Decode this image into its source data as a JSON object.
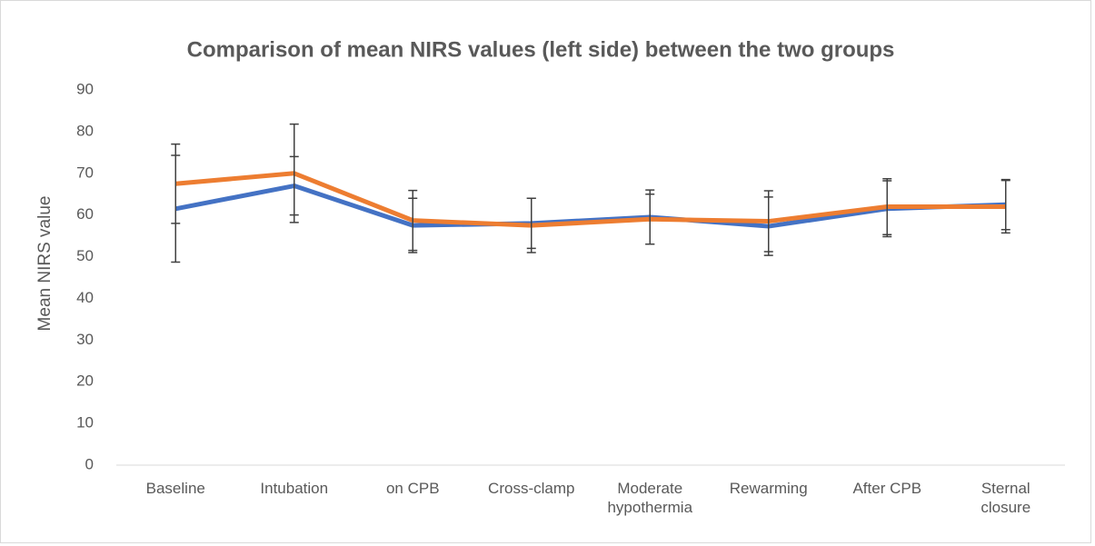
{
  "chart_data": {
    "type": "line",
    "title": "Comparison of mean NIRS values (left side) between the two groups",
    "y_label": "Mean NIRS value",
    "categories": [
      "Baseline",
      "Intubation",
      "on CPB",
      "Cross-clamp",
      "Moderate hypothermia",
      "Rewarming",
      "After CPB",
      "Sternal closure"
    ],
    "series": [
      {
        "color": "#4472c4",
        "values": [
          61.5,
          67,
          57.5,
          58,
          59.5,
          57.3,
          61.5,
          62.5
        ],
        "errors": [
          12.8,
          7,
          6.5,
          6,
          6.5,
          7,
          6.7,
          6
        ]
      },
      {
        "color": "#ed7d31",
        "values": [
          67.5,
          70,
          58.7,
          57.5,
          59,
          58.5,
          62,
          62
        ],
        "errors": [
          9.5,
          11.8,
          7.2,
          6.5,
          6,
          7.3,
          6.7,
          6.3
        ]
      }
    ],
    "error_bar_color": "#404040",
    "ylim": [
      0,
      90
    ],
    "yticks": [
      0,
      10,
      20,
      30,
      40,
      50,
      60,
      70,
      80,
      90
    ],
    "grid": false
  }
}
